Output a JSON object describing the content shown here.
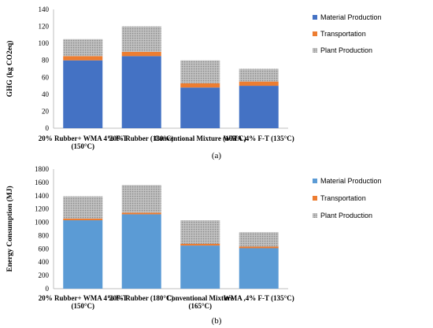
{
  "chart_data": [
    {
      "type": "bar",
      "stacked": true,
      "panel_label": "(a)",
      "ylabel": "GHG (kg CO2eq)",
      "ylim": [
        0,
        140
      ],
      "yticks": [
        0,
        20,
        40,
        60,
        80,
        100,
        120,
        140
      ],
      "grid": false,
      "legend_position": "right",
      "categories": [
        [
          "20% Rubber+ WMA 4% F-T",
          "(150°C)"
        ],
        [
          "20% Rubber (180°C)"
        ],
        [
          "Conventional Mixture (165°C)"
        ],
        [
          "WMA ,4% F-T (135°C)"
        ]
      ],
      "series": [
        {
          "name": "Material Production",
          "color": "#4472C4",
          "pattern": "solid",
          "values": [
            80,
            85,
            48,
            50
          ]
        },
        {
          "name": "Transportation",
          "color": "#ED7D31",
          "pattern": "solid",
          "values": [
            5,
            5,
            5,
            5
          ]
        },
        {
          "name": "Plant Production",
          "color": "#A5A5A5",
          "pattern": "dotted",
          "values": [
            20,
            30,
            27,
            15
          ]
        }
      ]
    },
    {
      "type": "bar",
      "stacked": true,
      "panel_label": "(b)",
      "ylabel": "Energy Consumption (MJ)",
      "ylim": [
        0,
        1800
      ],
      "yticks": [
        0,
        200,
        400,
        600,
        800,
        1000,
        1200,
        1400,
        1600,
        1800
      ],
      "grid": false,
      "legend_position": "right",
      "categories": [
        [
          "20% Rubber+ WMA 4% F-T",
          "(150°C)"
        ],
        [
          "20% Rubber (180°C)"
        ],
        [
          "Conventional Mixture",
          "(165°C)"
        ],
        [
          "WMA ,4% F-T (135°C)"
        ]
      ],
      "series": [
        {
          "name": "Material Production",
          "color": "#5B9BD5",
          "pattern": "solid",
          "values": [
            1030,
            1120,
            650,
            610
          ]
        },
        {
          "name": "Transportation",
          "color": "#ED7D31",
          "pattern": "solid",
          "values": [
            25,
            25,
            25,
            25
          ]
        },
        {
          "name": "Plant Production",
          "color": "#A5A5A5",
          "pattern": "dotted",
          "values": [
            335,
            415,
            355,
            215
          ]
        }
      ]
    }
  ]
}
